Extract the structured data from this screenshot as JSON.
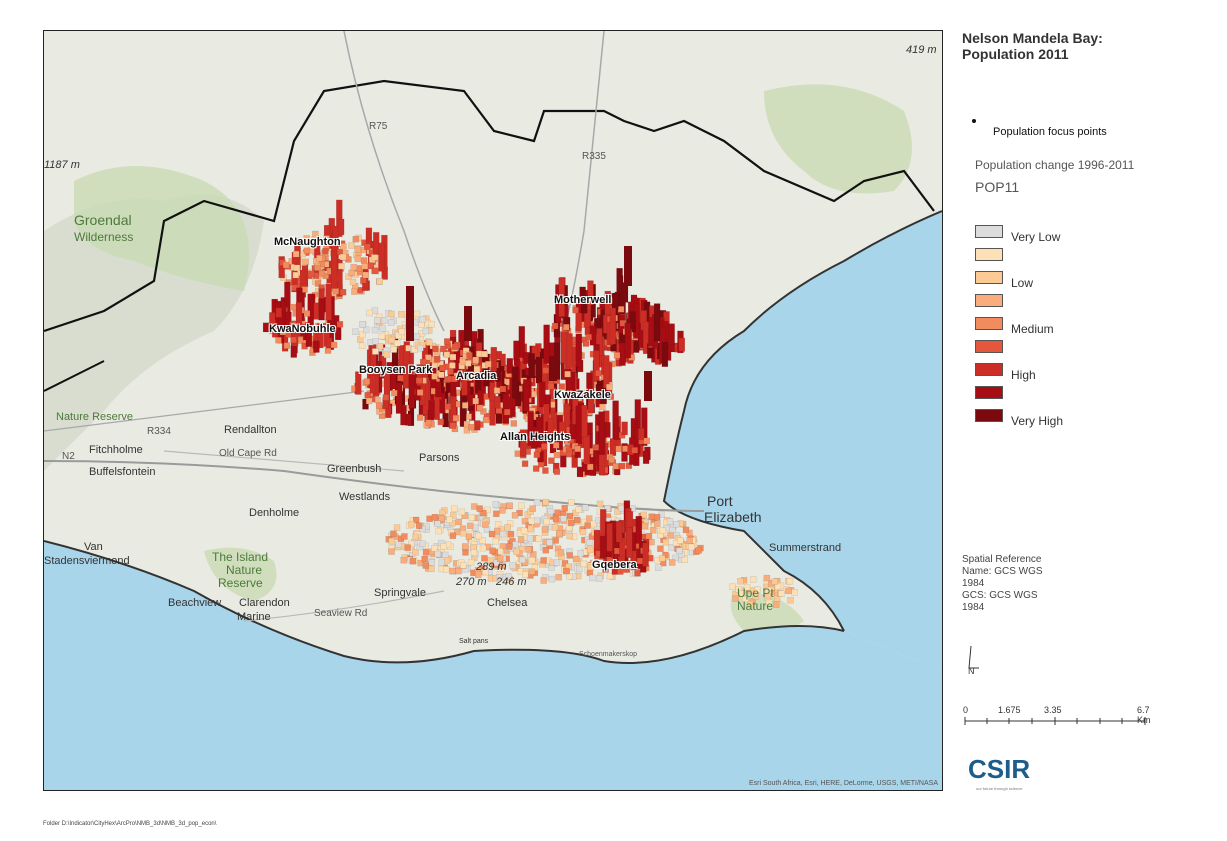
{
  "title": "Nelson Mandela Bay:\nPopulation 2011",
  "legend": {
    "focus_points_label": "Population focus points",
    "change_title": "Population change 1996-2011",
    "field_name": "POP11",
    "classes": [
      {
        "label": "Very Low",
        "color": "#dcdcdc"
      },
      {
        "label": "",
        "color": "#fde0b6"
      },
      {
        "label": "Low",
        "color": "#fcca94"
      },
      {
        "label": "",
        "color": "#f9ad7c"
      },
      {
        "label": "Medium",
        "color": "#f28c5e"
      },
      {
        "label": "",
        "color": "#e4573d"
      },
      {
        "label": "High",
        "color": "#cc2e26"
      },
      {
        "label": "",
        "color": "#a80d14"
      },
      {
        "label": "Very High",
        "color": "#7b0a0e"
      }
    ]
  },
  "spatial_reference": "Spatial Reference\nName: GCS WGS\n1984\nGCS: GCS WGS\n1984",
  "north_label": "N",
  "scalebar": {
    "ticks": [
      "0",
      "1.675",
      "3.35",
      "6.7 Km"
    ]
  },
  "logo": {
    "text": "CSIR",
    "tagline": "our future through science"
  },
  "footer_path": "Folder D:\\Indicator\\CityHex\\ArcPro\\NMB_3d\\NMB_3d_pop_econ\\",
  "attribution": "Esri South Africa, Esri, HERE, DeLorme, USGS, METI/NASA",
  "focus_points": [
    "McNaughton",
    "KwaNobuhle",
    "Motherwell",
    "Booysen Park",
    "Arcadia",
    "KwaZakele",
    "Allan Heights",
    "Gqebera"
  ],
  "place_labels": [
    "Groendal",
    "Rendallton",
    "Fitchholme",
    "Buffelsfontein",
    "Denholme",
    "Greenbush",
    "Parsons",
    "Westlands",
    "Springvale",
    "Chelsea",
    "Beachview",
    "Clarendon",
    "Marine",
    "Summerstrand",
    "Port",
    "Elizabeth",
    "Van",
    "Stadensviermond",
    "Old Cape Rd",
    "Seaview Rd",
    "R75",
    "R335",
    "R334",
    "N2",
    "Schoenmakerskop",
    "Wilderness",
    "Nature Reserve",
    "The Island",
    "Nature",
    "Reserve",
    "Upe Pt",
    "Nature",
    "289 m",
    "270 m",
    "246 m",
    "1187 m",
    "419 m",
    "Salt pans"
  ],
  "colors": {
    "sea": "#a9d5ea",
    "land": "#e9ebe3",
    "park": "#c9dbb4",
    "boundary": "#111111",
    "coast": "#333333"
  }
}
